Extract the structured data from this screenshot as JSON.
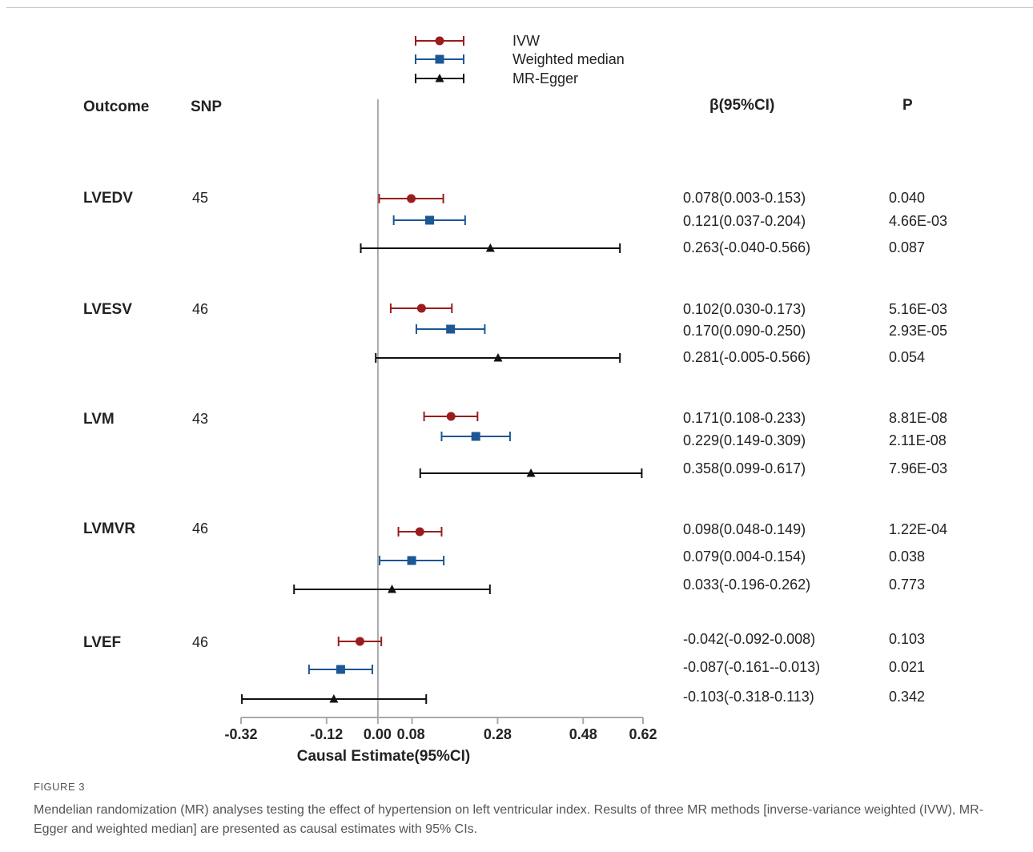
{
  "chart_data": {
    "type": "forest",
    "legend": {
      "placement": "top-center",
      "entries": [
        {
          "name": "IVW",
          "marker": "circle",
          "color": "#9b1c1c"
        },
        {
          "name": "Weighted median",
          "marker": "square",
          "color": "#1c5796"
        },
        {
          "name": "MR-Egger",
          "marker": "triangle",
          "color": "#111111"
        }
      ]
    },
    "headers": {
      "outcome": "Outcome",
      "snp": "SNP",
      "beta": "β(95%CI)",
      "p": "P"
    },
    "xlabel": "Causal Estimate(95%CI)",
    "xlim": [
      -0.32,
      0.62
    ],
    "xticks": [
      {
        "value": -0.32,
        "label": "-0.32"
      },
      {
        "value": -0.12,
        "label": "-0.12"
      },
      {
        "value": 0.0,
        "label": "0.00"
      },
      {
        "value": 0.08,
        "label": "0.08"
      },
      {
        "value": 0.28,
        "label": "0.28"
      },
      {
        "value": 0.48,
        "label": "0.48"
      },
      {
        "value": 0.62,
        "label": "0.62"
      }
    ],
    "reference_line": 0,
    "groups": [
      {
        "outcome": "LVEDV",
        "snp": "45",
        "rows": [
          {
            "method": "IVW",
            "estimate": 0.078,
            "lower": 0.003,
            "upper": 0.153,
            "ci_text": "0.078(0.003-0.153)",
            "p": "0.040"
          },
          {
            "method": "Weighted median",
            "estimate": 0.121,
            "lower": 0.037,
            "upper": 0.204,
            "ci_text": "0.121(0.037-0.204)",
            "p": "4.66E-03"
          },
          {
            "method": "MR-Egger",
            "estimate": 0.263,
            "lower": -0.04,
            "upper": 0.566,
            "ci_text": "0.263(-0.040-0.566)",
            "p": "0.087"
          }
        ]
      },
      {
        "outcome": "LVESV",
        "snp": "46",
        "rows": [
          {
            "method": "IVW",
            "estimate": 0.102,
            "lower": 0.03,
            "upper": 0.173,
            "ci_text": "0.102(0.030-0.173)",
            "p": "5.16E-03"
          },
          {
            "method": "Weighted median",
            "estimate": 0.17,
            "lower": 0.09,
            "upper": 0.25,
            "ci_text": "0.170(0.090-0.250)",
            "p": "2.93E-05"
          },
          {
            "method": "MR-Egger",
            "estimate": 0.281,
            "lower": -0.005,
            "upper": 0.566,
            "ci_text": "0.281(-0.005-0.566)",
            "p": "0.054"
          }
        ]
      },
      {
        "outcome": "LVM",
        "snp": "43",
        "rows": [
          {
            "method": "IVW",
            "estimate": 0.171,
            "lower": 0.108,
            "upper": 0.233,
            "ci_text": "0.171(0.108-0.233)",
            "p": "8.81E-08"
          },
          {
            "method": "Weighted median",
            "estimate": 0.229,
            "lower": 0.149,
            "upper": 0.309,
            "ci_text": "0.229(0.149-0.309)",
            "p": "2.11E-08"
          },
          {
            "method": "MR-Egger",
            "estimate": 0.358,
            "lower": 0.099,
            "upper": 0.617,
            "ci_text": "0.358(0.099-0.617)",
            "p": "7.96E-03"
          }
        ]
      },
      {
        "outcome": "LVMVR",
        "snp": "46",
        "rows": [
          {
            "method": "IVW",
            "estimate": 0.098,
            "lower": 0.048,
            "upper": 0.149,
            "ci_text": "0.098(0.048-0.149)",
            "p": "1.22E-04"
          },
          {
            "method": "Weighted median",
            "estimate": 0.079,
            "lower": 0.004,
            "upper": 0.154,
            "ci_text": "0.079(0.004-0.154)",
            "p": "0.038"
          },
          {
            "method": "MR-Egger",
            "estimate": 0.033,
            "lower": -0.196,
            "upper": 0.262,
            "ci_text": "0.033(-0.196-0.262)",
            "p": "0.773"
          }
        ]
      },
      {
        "outcome": "LVEF",
        "snp": "46",
        "rows": [
          {
            "method": "IVW",
            "estimate": -0.042,
            "lower": -0.092,
            "upper": 0.008,
            "ci_text": "-0.042(-0.092-0.008)",
            "p": "0.103"
          },
          {
            "method": "Weighted median",
            "estimate": -0.087,
            "lower": -0.161,
            "upper": -0.013,
            "ci_text": "-0.087(-0.161--0.013)",
            "p": "0.021"
          },
          {
            "method": "MR-Egger",
            "estimate": -0.103,
            "lower": -0.318,
            "upper": 0.113,
            "ci_text": "-0.103(-0.318-0.113)",
            "p": "0.342"
          }
        ]
      }
    ]
  },
  "caption": {
    "label": "FIGURE 3",
    "text": "Mendelian randomization (MR) analyses testing the effect of hypertension on left ventricular index. Results of three MR methods [inverse-variance weighted (IVW), MR-Egger and weighted median] are presented as causal estimates with 95% CIs."
  }
}
